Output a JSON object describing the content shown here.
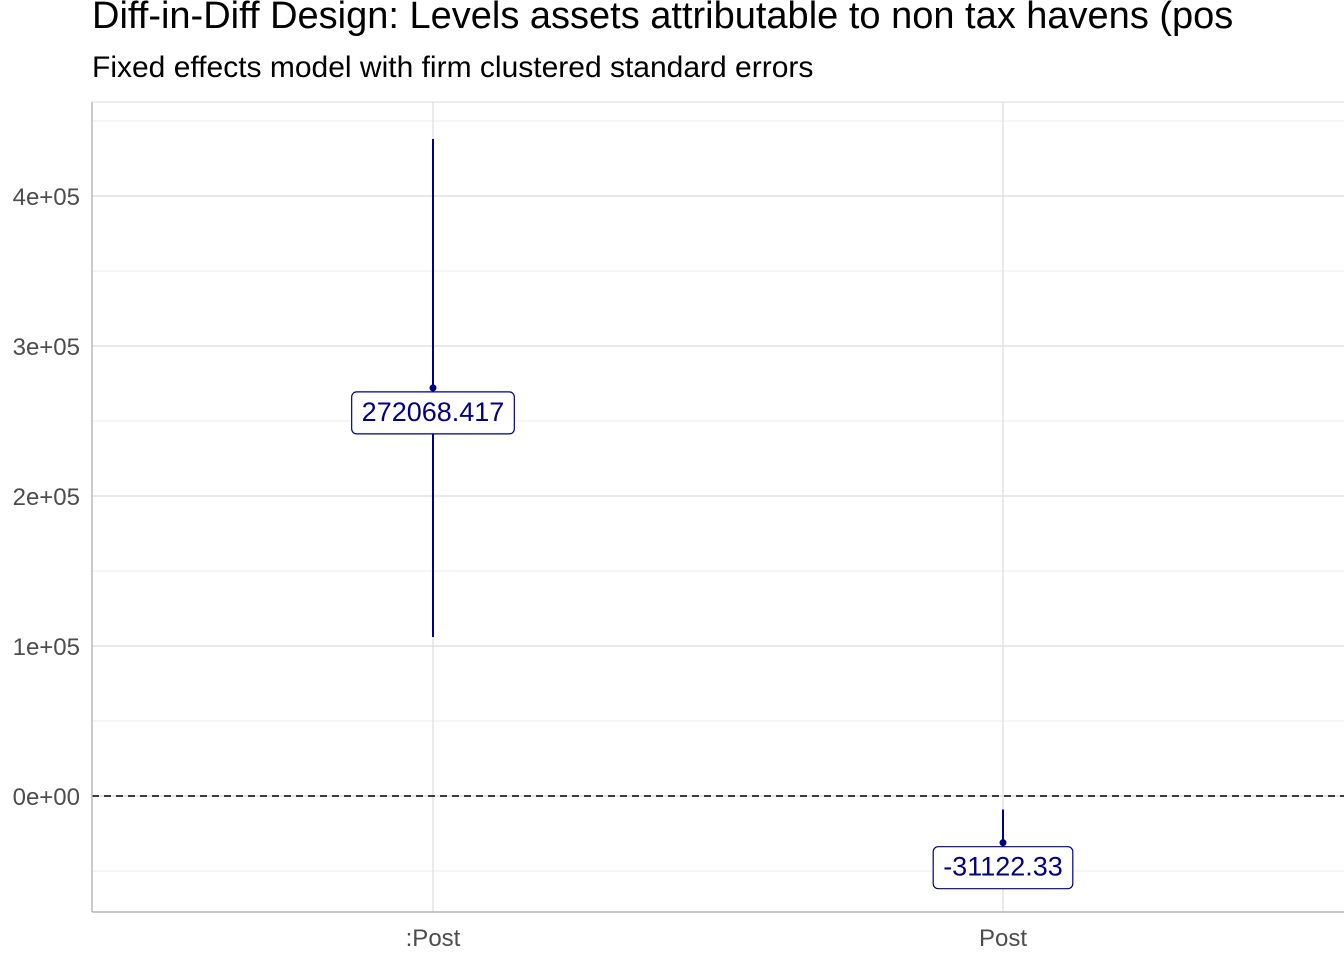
{
  "colors": {
    "series": "#000080",
    "grid": "#ebebeb",
    "panel_border": "#b3b3b3",
    "reference_line": "#000000",
    "tick_text": "#4d4d4d"
  },
  "chart_data": {
    "type": "scatter",
    "title": "Diff-in-Diff Design: Levels assets attributable to non tax havens (pos",
    "subtitle": "Fixed effects model with firm clustered standard errors",
    "xlabel": "",
    "ylabel": "",
    "categories": [
      ":Post",
      "Post"
    ],
    "points": [
      {
        "category": ":Post",
        "estimate": 272068.417,
        "ci_low": 106000,
        "ci_high": 438000,
        "label": "272068.417"
      },
      {
        "category": "Post",
        "estimate": -31122.33,
        "ci_low": -51000,
        "ci_high": -9000,
        "label": "-31122.33"
      }
    ],
    "ylim": [
      -77000,
      463000
    ],
    "y_ticks": [
      {
        "value": 0,
        "label": "0e+00"
      },
      {
        "value": 100000,
        "label": "1e+05"
      },
      {
        "value": 200000,
        "label": "2e+05"
      },
      {
        "value": 300000,
        "label": "3e+05"
      },
      {
        "value": 400000,
        "label": "4e+05"
      }
    ],
    "y_minor_ticks": [
      -50000,
      50000,
      150000,
      250000,
      350000,
      450000
    ],
    "reference_line": {
      "y": 0,
      "style": "dashed"
    },
    "grid": true,
    "legend": "none"
  }
}
